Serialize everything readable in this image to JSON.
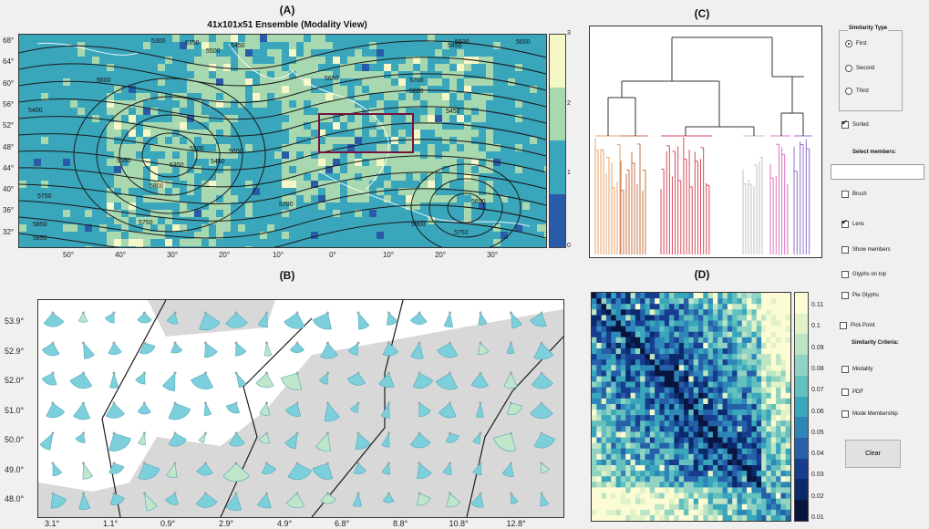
{
  "panel_labels": {
    "a": "(A)",
    "b": "(B)",
    "c": "(C)",
    "d": "(D)"
  },
  "map_a": {
    "title": "41x101x51 Ensemble (Modality View)",
    "y_ticks": [
      "68°",
      "64°",
      "60°",
      "56°",
      "52°",
      "48°",
      "44°",
      "40°",
      "36°",
      "32°"
    ],
    "x_ticks": [
      "50°",
      "40°",
      "30°",
      "20°",
      "10°",
      "0°",
      "10°",
      "20°",
      "30°"
    ],
    "contour_labels": [
      "5300",
      "5350",
      "5450",
      "5500",
      "5450",
      "5600",
      "5650",
      "5600",
      "5650",
      "5700",
      "5800",
      "5450",
      "5400",
      "5500",
      "5450",
      "5600",
      "5550",
      "5800",
      "5750",
      "5750",
      "5700",
      "5650",
      "5800",
      "5750",
      "5850",
      "5850",
      "5350"
    ],
    "colorbar_ticks": [
      "3",
      "2",
      "1",
      "0"
    ],
    "colors": [
      "#2a5ba8",
      "#3aa6bc",
      "#a8d8b0",
      "#f6f7c6"
    ]
  },
  "glyph_b": {
    "y_ticks": [
      "53.9°",
      "52.9°",
      "52.0°",
      "51.0°",
      "50.0°",
      "49.0°",
      "48.0°"
    ],
    "x_ticks": [
      "3.1°",
      "1.1°",
      "0.9°",
      "2.9°",
      "4.9°",
      "6.8°",
      "8.8°",
      "10.8°",
      "12.8°"
    ]
  },
  "dendrogram_c": {
    "branch_colors": [
      "#e8a060",
      "#c8704a",
      "#d84a5a",
      "#c0c0c0",
      "#e070c0",
      "#9070c8",
      "#333333"
    ]
  },
  "matrix_d": {
    "colorbar_ticks": [
      "0.11",
      "0.1",
      "0.09",
      "0.08",
      "0.07",
      "0.06",
      "0.05",
      "0.04",
      "0.03",
      "0.02",
      "0.01"
    ],
    "colors": [
      "#08153f",
      "#0a2a6b",
      "#173d8f",
      "#2660a8",
      "#2e86b8",
      "#3aa6bc",
      "#62c0bf",
      "#90d3c2",
      "#bde4c4",
      "#e0f2c6",
      "#fbfcd4"
    ]
  },
  "controls": {
    "similarity_type": {
      "title": "Similarity Type",
      "options": [
        "First",
        "Second",
        "Third"
      ],
      "selected": "First"
    },
    "sorted": {
      "label": "Sorted",
      "checked": true
    },
    "select_members_label": "Select members:",
    "select_members_value": "",
    "brush": {
      "label": "Brush",
      "checked": false
    },
    "lens": {
      "label": "Lens",
      "checked": true
    },
    "show_members": {
      "label": "Show members",
      "checked": false
    },
    "glyphs_on_top": {
      "label": "Glyphs on top",
      "checked": false
    },
    "pie_glyphs": {
      "label": "Pie Glyphs",
      "checked": false
    },
    "pick_point": {
      "label": "Pick Point",
      "checked": false
    },
    "criteria_title": "Similarity Criteria:",
    "modality": {
      "label": "Modality",
      "checked": false
    },
    "pdf": {
      "label": "PDF",
      "checked": false
    },
    "mode_membership": {
      "label": "Mode Membership",
      "checked": false
    },
    "clear_label": "Clear"
  }
}
